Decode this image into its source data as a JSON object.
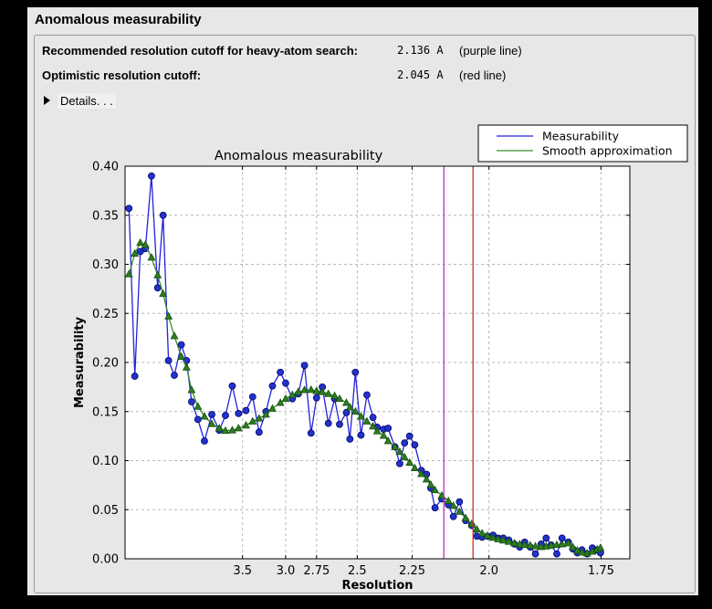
{
  "window": {
    "title": "Anomalous measurability"
  },
  "info": {
    "rows": [
      {
        "label": "Recommended resolution cutoff for heavy-atom search:",
        "value": "2.136 A",
        "note": "(purple line)"
      },
      {
        "label": "Optimistic resolution cutoff:",
        "value": "2.045 A",
        "note": "(red line)"
      }
    ],
    "details_label": "Details. . ."
  },
  "chart_data": {
    "type": "line",
    "title": "Anomalous measurability",
    "xlabel": "Resolution",
    "ylabel": "Measurability",
    "ylim": [
      0.0,
      0.4
    ],
    "yticks": [
      "0.00",
      "0.05",
      "0.10",
      "0.15",
      "0.20",
      "0.25",
      "0.30",
      "0.35",
      "0.40"
    ],
    "xticks": [
      {
        "d": 3.5,
        "label": "3.5"
      },
      {
        "d": 3.0,
        "label": "3.0"
      },
      {
        "d": 2.75,
        "label": "2.75"
      },
      {
        "d": 2.5,
        "label": "2.5"
      },
      {
        "d": 2.25,
        "label": "2.25"
      },
      {
        "d": 2.0,
        "label": "2.0"
      },
      {
        "d": 1.75,
        "label": "1.75"
      }
    ],
    "x_scale": "inverse_d_squared",
    "legend": {
      "position": "upper right",
      "entries": [
        "Measurability",
        "Smooth approximation"
      ]
    },
    "vlines": [
      {
        "d": 2.136,
        "color": "#bb33bb",
        "name": "purple line"
      },
      {
        "d": 2.045,
        "color": "#cc3311",
        "name": "red line"
      }
    ],
    "grid": {
      "on": true,
      "color": "#b8b8b8",
      "dash": "3,3"
    },
    "resolution_d": [
      15.71,
      11.15,
      9.21,
      8.09,
      7.17,
      6.5,
      6.04,
      5.67,
      5.34,
      5.01,
      4.8,
      4.62,
      4.42,
      4.24,
      4.06,
      3.9,
      3.78,
      3.66,
      3.56,
      3.45,
      3.36,
      3.28,
      3.2,
      3.13,
      3.05,
      3.0,
      2.94,
      2.89,
      2.84,
      2.79,
      2.75,
      2.71,
      2.67,
      2.63,
      2.6,
      2.56,
      2.54,
      2.51,
      2.48,
      2.45,
      2.42,
      2.4,
      2.37,
      2.35,
      2.32,
      2.3,
      2.28,
      2.26,
      2.24,
      2.215,
      2.196,
      2.181,
      2.166,
      2.143,
      2.121,
      2.105,
      2.086,
      2.067,
      2.049,
      2.034,
      2.019,
      2.004,
      1.989,
      1.975,
      1.962,
      1.948,
      1.934,
      1.921,
      1.909,
      1.896,
      1.884,
      1.871,
      1.86,
      1.849,
      1.837,
      1.826,
      1.813,
      1.804,
      1.795,
      1.786,
      1.776,
      1.766,
      1.757,
      1.751
    ],
    "series": [
      {
        "name": "Measurability",
        "color": "#2222dd",
        "marker": "circle",
        "marker_fill": "#2233cc",
        "marker_edge": "#000066",
        "values": [
          0.357,
          0.186,
          0.313,
          0.316,
          0.39,
          0.276,
          0.35,
          0.202,
          0.187,
          0.218,
          0.202,
          0.16,
          0.142,
          0.12,
          0.147,
          0.131,
          0.146,
          0.176,
          0.148,
          0.151,
          0.165,
          0.129,
          0.15,
          0.176,
          0.19,
          0.179,
          0.163,
          0.168,
          0.197,
          0.128,
          0.164,
          0.175,
          0.138,
          0.163,
          0.137,
          0.149,
          0.122,
          0.19,
          0.126,
          0.167,
          0.144,
          0.134,
          0.132,
          0.133,
          0.114,
          0.097,
          0.118,
          0.125,
          0.116,
          0.09,
          0.086,
          0.072,
          0.052,
          0.061,
          0.055,
          0.043,
          0.058,
          0.039,
          0.034,
          0.023,
          0.022,
          0.023,
          0.024,
          0.021,
          0.021,
          0.019,
          0.015,
          0.012,
          0.017,
          0.012,
          0.005,
          0.015,
          0.021,
          0.014,
          0.005,
          0.021,
          0.017,
          0.01,
          0.006,
          0.009,
          0.005,
          0.011,
          0.009,
          0.006
        ]
      },
      {
        "name": "Smooth approximation",
        "color": "#3a8f2e",
        "marker": "triangle",
        "marker_fill": "#2f7d1f",
        "marker_edge": "#14500f",
        "values": [
          0.29,
          0.311,
          0.322,
          0.32,
          0.307,
          0.289,
          0.27,
          0.247,
          0.227,
          0.206,
          0.195,
          0.172,
          0.155,
          0.145,
          0.1375,
          0.133,
          0.1305,
          0.131,
          0.133,
          0.136,
          0.14,
          0.143,
          0.147,
          0.153,
          0.159,
          0.163,
          0.167,
          0.17,
          0.172,
          0.1722,
          0.171,
          0.17,
          0.168,
          0.166,
          0.163,
          0.159,
          0.1545,
          0.15,
          0.145,
          0.14,
          0.135,
          0.13,
          0.1255,
          0.12,
          0.114,
          0.109,
          0.1035,
          0.098,
          0.0925,
          0.0865,
          0.081,
          0.0755,
          0.07,
          0.0645,
          0.059,
          0.054,
          0.048,
          0.0415,
          0.0355,
          0.03,
          0.026,
          0.0235,
          0.0215,
          0.02,
          0.0188,
          0.0175,
          0.016,
          0.0149,
          0.0142,
          0.0137,
          0.0128,
          0.0121,
          0.0127,
          0.0137,
          0.0142,
          0.0149,
          0.0158,
          0.012,
          0.0085,
          0.0065,
          0.0056,
          0.0074,
          0.0096,
          0.0112
        ]
      }
    ]
  }
}
